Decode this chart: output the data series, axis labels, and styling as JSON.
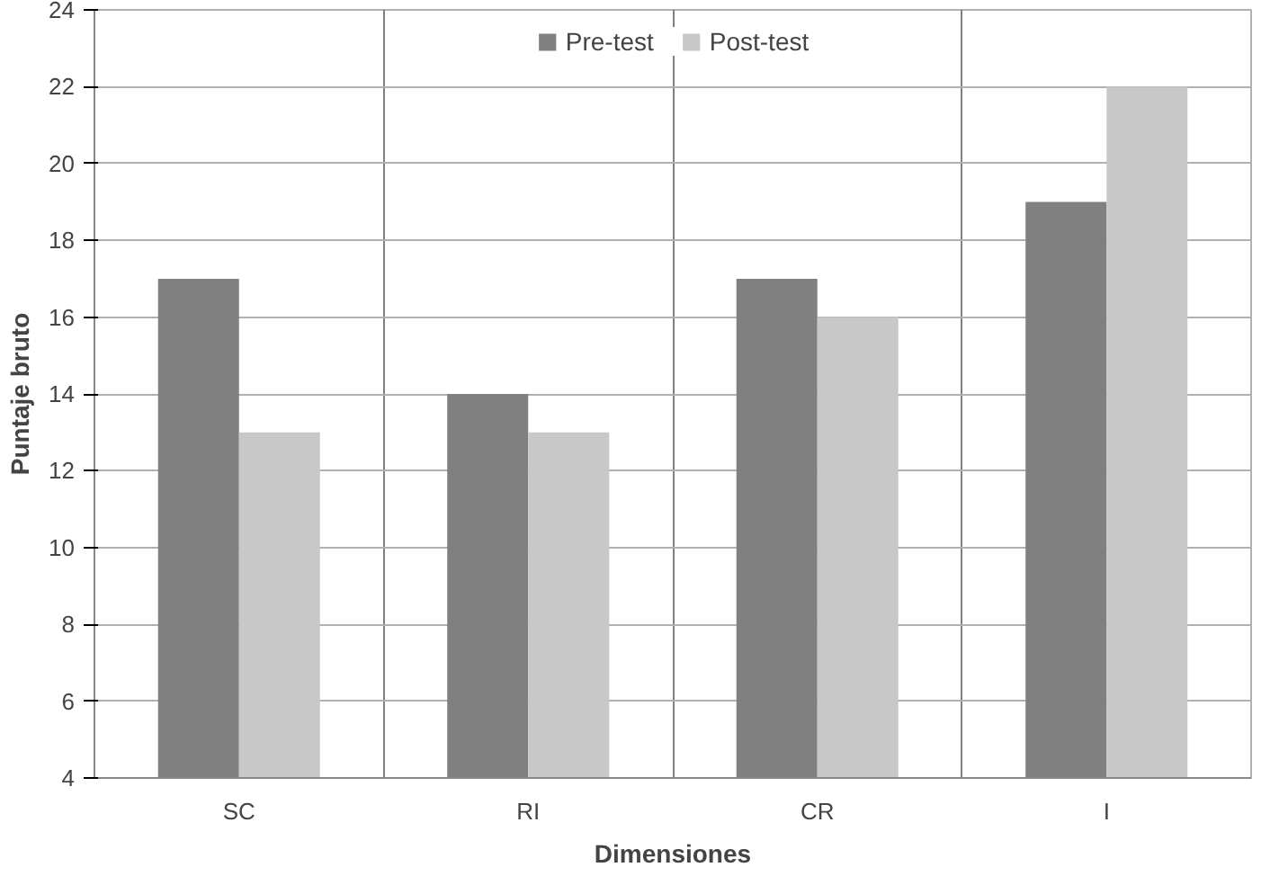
{
  "chart_data": {
    "type": "bar",
    "xlabel": "Dimensiones",
    "ylabel": "Puntaje bruto",
    "categories": [
      "SC",
      "RI",
      "CR",
      "I"
    ],
    "series": [
      {
        "name": "Pre-test",
        "color": "#808080",
        "values": [
          17,
          14,
          17,
          19
        ]
      },
      {
        "name": "Post-test",
        "color": "#c8c8c8",
        "values": [
          13,
          13,
          16,
          22
        ]
      }
    ],
    "ylim": [
      4,
      24
    ],
    "yticks": [
      4,
      6,
      8,
      10,
      12,
      14,
      16,
      18,
      20,
      22,
      24
    ],
    "grid": true,
    "legend": "top"
  }
}
